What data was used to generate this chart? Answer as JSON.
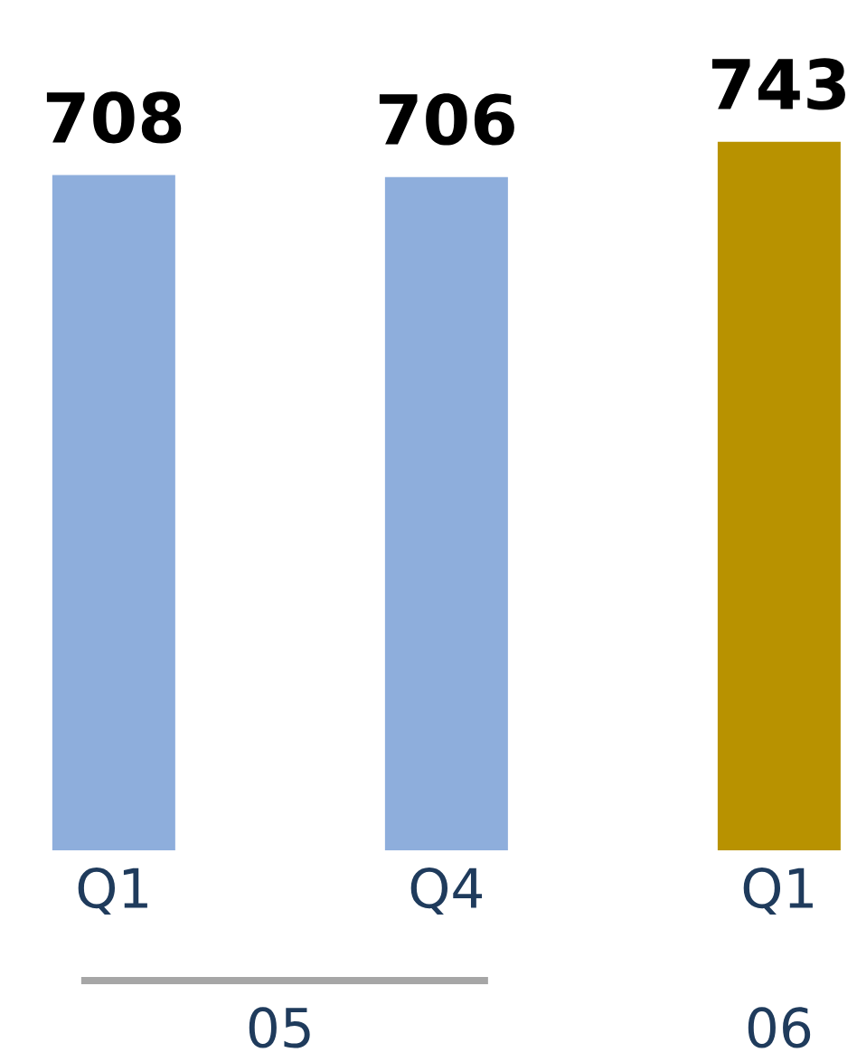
{
  "chart_data": {
    "type": "bar",
    "categories": [
      "Q1",
      "Q4",
      "Q1"
    ],
    "values": [
      708,
      706,
      743
    ],
    "colors": [
      "#8eaedc",
      "#8eaedc",
      "#b89200"
    ],
    "data_labels": true,
    "annotations": [
      "05",
      "06"
    ]
  }
}
